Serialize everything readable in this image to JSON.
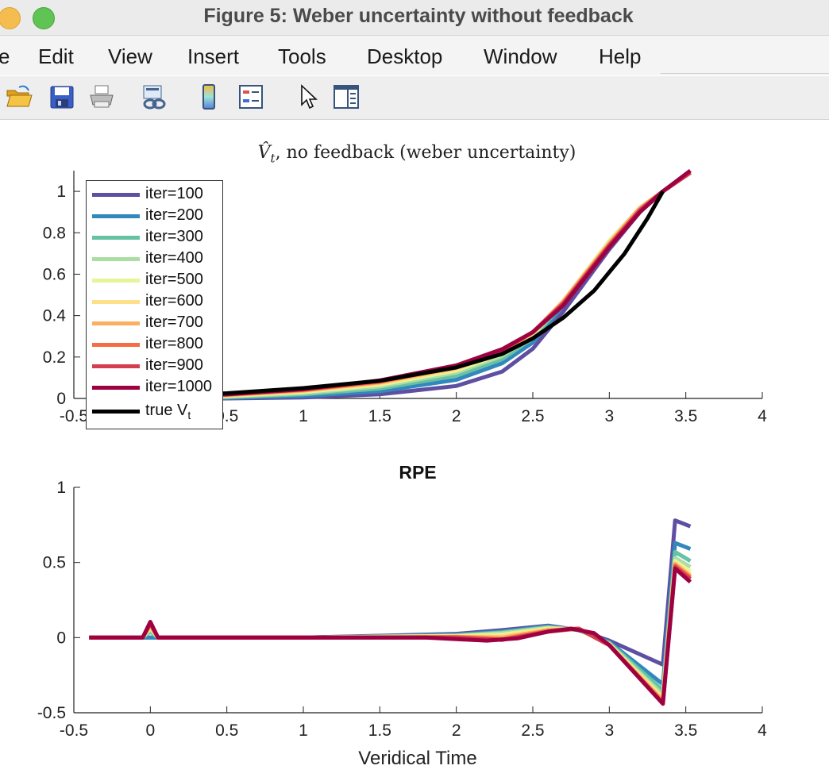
{
  "window": {
    "title": "Figure 5: Weber uncertainty without feedback"
  },
  "menu": [
    "e",
    "Edit",
    "View",
    "Insert",
    "Tools",
    "Desktop",
    "Window",
    "Help"
  ],
  "toolbar": {
    "icons": [
      "open-folder-icon",
      "save-disk-icon",
      "print-icon",
      "link-icon",
      "colorbar-icon",
      "legend-icon",
      "pointer-icon",
      "property-editor-icon"
    ]
  },
  "colors": {
    "iter100": "#5e4fa2",
    "iter200": "#3288bd",
    "iter300": "#66c2a5",
    "iter400": "#abdda4",
    "iter500": "#e6f598",
    "iter600": "#fee08b",
    "iter700": "#fdae61",
    "iter800": "#f46d43",
    "iter900": "#d53e4f",
    "iter1000": "#9e0142",
    "true": "#000000"
  },
  "chart_data": [
    {
      "type": "line",
      "title_main": "V̂",
      "title_sub": "t",
      "title_rest": ", no feedback (weber uncertainty)",
      "xlabel": "",
      "ylabel": "",
      "xlim": [
        -0.5,
        4
      ],
      "ylim": [
        0,
        1.1
      ],
      "xticks": [
        "-0.5",
        "0",
        "0.5",
        "1",
        "1.5",
        "2",
        "2.5",
        "3",
        "3.5",
        "4"
      ],
      "yticks": [
        "0",
        "0.2",
        "0.4",
        "0.6",
        "0.8",
        "1"
      ],
      "legend_position": "top-left",
      "legend": [
        "iter=100",
        "iter=200",
        "iter=300",
        "iter=400",
        "iter=500",
        "iter=600",
        "iter=700",
        "iter=800",
        "iter=900",
        "iter=1000"
      ],
      "legend_true_main": "true V",
      "legend_true_sub": "t",
      "series": [
        {
          "name": "iter=100",
          "x": [
            -0.4,
            0.5,
            1.0,
            1.5,
            2.0,
            2.3,
            2.5,
            2.7,
            3.0,
            3.2,
            3.35,
            3.53
          ],
          "y": [
            0.0,
            0.0,
            0.005,
            0.02,
            0.06,
            0.13,
            0.24,
            0.42,
            0.72,
            0.9,
            1.0,
            1.09
          ]
        },
        {
          "name": "iter=200",
          "x": [
            -0.4,
            0.5,
            1.0,
            1.5,
            2.0,
            2.3,
            2.5,
            2.7,
            3.0,
            3.2,
            3.35,
            3.53
          ],
          "y": [
            0.0,
            0.003,
            0.012,
            0.035,
            0.09,
            0.17,
            0.27,
            0.45,
            0.75,
            0.91,
            1.0,
            1.09
          ]
        },
        {
          "name": "iter=300",
          "x": [
            -0.4,
            0.5,
            1.0,
            1.5,
            2.0,
            2.3,
            2.5,
            2.7,
            3.0,
            3.2,
            3.35,
            3.53
          ],
          "y": [
            0.0,
            0.006,
            0.02,
            0.048,
            0.11,
            0.19,
            0.29,
            0.46,
            0.76,
            0.92,
            1.0,
            1.09
          ]
        },
        {
          "name": "iter=400",
          "x": [
            -0.4,
            0.5,
            1.0,
            1.5,
            2.0,
            2.3,
            2.5,
            2.7,
            3.0,
            3.2,
            3.35,
            3.53
          ],
          "y": [
            0.0,
            0.009,
            0.026,
            0.058,
            0.125,
            0.205,
            0.3,
            0.47,
            0.76,
            0.92,
            1.0,
            1.09
          ]
        },
        {
          "name": "iter=500",
          "x": [
            -0.4,
            0.5,
            1.0,
            1.5,
            2.0,
            2.3,
            2.5,
            2.7,
            3.0,
            3.2,
            3.35,
            3.53
          ],
          "y": [
            0.0,
            0.012,
            0.031,
            0.066,
            0.135,
            0.215,
            0.31,
            0.47,
            0.76,
            0.92,
            1.0,
            1.09
          ]
        },
        {
          "name": "iter=600",
          "x": [
            -0.4,
            0.5,
            1.0,
            1.5,
            2.0,
            2.3,
            2.5,
            2.7,
            3.0,
            3.2,
            3.35,
            3.53
          ],
          "y": [
            0.0,
            0.014,
            0.035,
            0.072,
            0.142,
            0.222,
            0.315,
            0.47,
            0.75,
            0.92,
            1.0,
            1.09
          ]
        },
        {
          "name": "iter=700",
          "x": [
            -0.4,
            0.5,
            1.0,
            1.5,
            2.0,
            2.3,
            2.5,
            2.7,
            3.0,
            3.2,
            3.35,
            3.53
          ],
          "y": [
            0.0,
            0.016,
            0.038,
            0.077,
            0.148,
            0.228,
            0.318,
            0.47,
            0.75,
            0.92,
            1.0,
            1.09
          ]
        },
        {
          "name": "iter=800",
          "x": [
            -0.4,
            0.5,
            1.0,
            1.5,
            2.0,
            2.3,
            2.5,
            2.7,
            3.0,
            3.2,
            3.35,
            3.53
          ],
          "y": [
            0.0,
            0.018,
            0.041,
            0.081,
            0.153,
            0.232,
            0.32,
            0.46,
            0.74,
            0.91,
            1.0,
            1.09
          ]
        },
        {
          "name": "iter=900",
          "x": [
            -0.4,
            0.5,
            1.0,
            1.5,
            2.0,
            2.3,
            2.5,
            2.7,
            3.0,
            3.2,
            3.35,
            3.53
          ],
          "y": [
            0.0,
            0.019,
            0.043,
            0.084,
            0.156,
            0.235,
            0.32,
            0.46,
            0.74,
            0.91,
            1.0,
            1.09
          ]
        },
        {
          "name": "iter=1000",
          "x": [
            -0.4,
            0.5,
            1.0,
            1.5,
            2.0,
            2.3,
            2.5,
            2.7,
            3.0,
            3.2,
            3.35,
            3.53
          ],
          "y": [
            0.0,
            0.02,
            0.045,
            0.087,
            0.16,
            0.238,
            0.32,
            0.45,
            0.73,
            0.9,
            1.0,
            1.1
          ]
        },
        {
          "name": "true V_t",
          "x": [
            -0.4,
            0.5,
            1.0,
            1.5,
            2.0,
            2.3,
            2.5,
            2.7,
            2.9,
            3.1,
            3.25,
            3.35
          ],
          "y": [
            0.0,
            0.025,
            0.05,
            0.085,
            0.15,
            0.215,
            0.29,
            0.39,
            0.52,
            0.7,
            0.87,
            1.0
          ]
        }
      ]
    },
    {
      "type": "line",
      "title": "RPE",
      "xlabel": "Veridical Time",
      "ylabel": "",
      "xlim": [
        -0.5,
        4
      ],
      "ylim": [
        -0.5,
        1
      ],
      "xticks": [
        "-0.5",
        "0",
        "0.5",
        "1",
        "1.5",
        "2",
        "2.5",
        "3",
        "3.5",
        "4"
      ],
      "yticks": [
        "-0.5",
        "0",
        "0.5",
        "1"
      ],
      "series": [
        {
          "name": "iter=100",
          "x": [
            -0.4,
            -0.05,
            0.0,
            0.05,
            1.0,
            2.0,
            2.3,
            2.6,
            2.8,
            3.0,
            3.35,
            3.43,
            3.53
          ],
          "y": [
            0.0,
            0.0,
            0.0,
            0.0,
            0.0,
            0.025,
            0.05,
            0.08,
            0.05,
            -0.02,
            -0.18,
            0.78,
            0.74
          ]
        },
        {
          "name": "iter=200",
          "x": [
            -0.4,
            -0.05,
            0.0,
            0.05,
            1.0,
            2.0,
            2.3,
            2.6,
            2.8,
            3.0,
            3.35,
            3.43,
            3.53
          ],
          "y": [
            0.0,
            0.0,
            0.0,
            0.0,
            0.0,
            0.02,
            0.04,
            0.075,
            0.05,
            -0.03,
            -0.31,
            0.63,
            0.59
          ]
        },
        {
          "name": "iter=300",
          "x": [
            -0.4,
            -0.05,
            0.0,
            0.05,
            1.0,
            2.0,
            2.3,
            2.6,
            2.8,
            3.0,
            3.35,
            3.43,
            3.53
          ],
          "y": [
            0.0,
            0.0,
            0.04,
            0.0,
            0.0,
            0.015,
            0.035,
            0.07,
            0.05,
            -0.035,
            -0.35,
            0.57,
            0.51
          ]
        },
        {
          "name": "iter=400",
          "x": [
            -0.4,
            -0.05,
            0.0,
            0.05,
            1.0,
            2.0,
            2.3,
            2.6,
            2.8,
            3.0,
            3.35,
            3.43,
            3.53
          ],
          "y": [
            0.0,
            0.0,
            0.055,
            0.0,
            0.0,
            0.012,
            0.03,
            0.065,
            0.055,
            -0.04,
            -0.38,
            0.53,
            0.47
          ]
        },
        {
          "name": "iter=500",
          "x": [
            -0.4,
            -0.05,
            0.0,
            0.05,
            1.0,
            2.0,
            2.3,
            2.6,
            2.8,
            3.0,
            3.35,
            3.43,
            3.53
          ],
          "y": [
            0.0,
            0.0,
            0.065,
            0.0,
            0.0,
            0.01,
            0.02,
            0.06,
            0.055,
            -0.045,
            -0.4,
            0.51,
            0.44
          ]
        },
        {
          "name": "iter=600",
          "x": [
            -0.4,
            -0.05,
            0.0,
            0.05,
            1.0,
            2.0,
            2.3,
            2.6,
            2.8,
            3.0,
            3.35,
            3.43,
            3.53
          ],
          "y": [
            0.0,
            0.0,
            0.075,
            0.0,
            0.0,
            0.008,
            0.01,
            0.055,
            0.06,
            -0.045,
            -0.41,
            0.5,
            0.42
          ]
        },
        {
          "name": "iter=700",
          "x": [
            -0.4,
            -0.05,
            0.0,
            0.05,
            1.0,
            2.0,
            2.3,
            2.6,
            2.8,
            3.0,
            3.35,
            3.43,
            3.53
          ],
          "y": [
            0.0,
            0.0,
            0.082,
            0.0,
            0.0,
            0.005,
            0.0,
            0.05,
            0.06,
            -0.05,
            -0.42,
            0.49,
            0.41
          ]
        },
        {
          "name": "iter=800",
          "x": [
            -0.4,
            -0.05,
            0.0,
            0.05,
            1.0,
            2.0,
            2.3,
            2.6,
            2.8,
            3.0,
            3.35,
            3.43,
            3.53
          ],
          "y": [
            0.0,
            0.0,
            0.09,
            0.0,
            0.0,
            0.003,
            -0.01,
            0.045,
            0.06,
            -0.05,
            -0.43,
            0.48,
            0.4
          ]
        },
        {
          "name": "iter=900",
          "x": [
            -0.4,
            -0.05,
            0.0,
            0.05,
            1.0,
            2.0,
            2.3,
            2.6,
            2.8,
            3.0,
            3.35,
            3.43,
            3.53
          ],
          "y": [
            0.0,
            0.0,
            0.097,
            0.0,
            0.0,
            0.0,
            -0.015,
            0.04,
            0.06,
            -0.05,
            -0.44,
            0.47,
            0.39
          ]
        },
        {
          "name": "iter=1000",
          "x": [
            -0.4,
            -0.05,
            0.0,
            0.05,
            1.0,
            1.8,
            2.0,
            2.2,
            2.4,
            2.6,
            2.75,
            2.9,
            3.0,
            3.35,
            3.43,
            3.53
          ],
          "y": [
            0.0,
            0.0,
            0.105,
            0.0,
            0.0,
            0.0,
            -0.01,
            -0.02,
            -0.005,
            0.04,
            0.06,
            0.03,
            -0.05,
            -0.44,
            0.46,
            0.37
          ]
        }
      ]
    }
  ]
}
